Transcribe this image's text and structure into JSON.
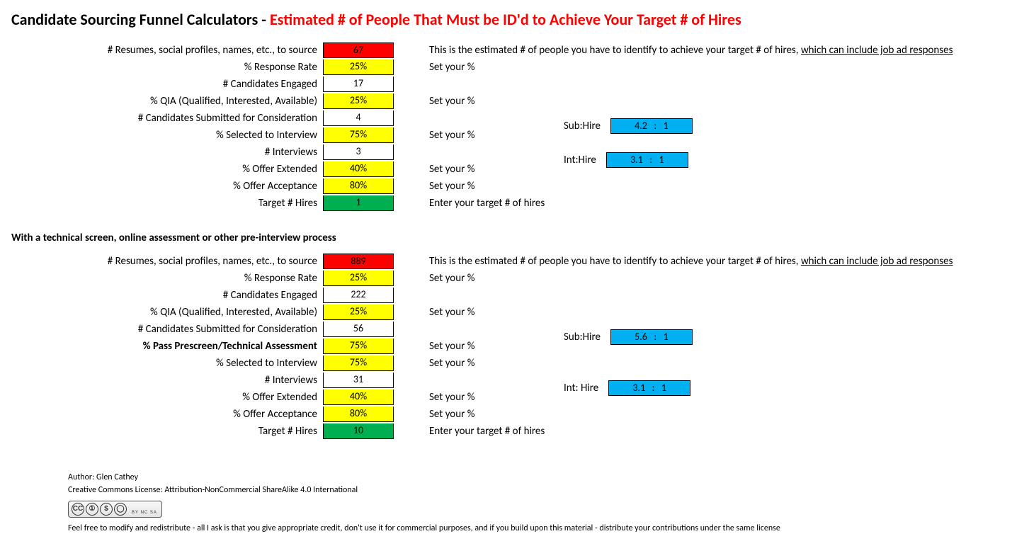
{
  "title": {
    "black": "Candidate Sourcing Funnel Calculators - ",
    "red": "Estimated # of People That Must be ID'd to Achieve Your Target # of Hires"
  },
  "colors": {
    "red": "#ff0000",
    "yellow": "#ffff00",
    "white": "#ffffff",
    "green": "#00b050",
    "blue": "#00b0f0",
    "border": "#000000",
    "text": "#000000"
  },
  "calc1": {
    "rows": [
      {
        "label": "# Resumes, social profiles, names, etc., to source",
        "value": "67",
        "style": "red",
        "desc_prefix": "This is the estimated # of people you have to identify to achieve your target # of hires, ",
        "desc_underlined": "which can include job ad responses"
      },
      {
        "label": "% Response Rate",
        "value": "25%",
        "style": "yellow",
        "desc": "Set your %"
      },
      {
        "label": "# Candidates Engaged",
        "value": "17",
        "style": "white",
        "desc": ""
      },
      {
        "label": "% QIA (Qualified, Interested, Available)",
        "value": "25%",
        "style": "yellow",
        "desc": "Set your %"
      },
      {
        "label": "# Candidates Submitted for Consideration",
        "value": "4",
        "style": "white",
        "desc": "",
        "ratio_label": "Sub:Hire",
        "ratio_value": "4.2   :   1"
      },
      {
        "label": "% Selected to Interview",
        "value": "75%",
        "style": "yellow",
        "desc": "Set your %"
      },
      {
        "label": "# Interviews",
        "value": "3",
        "style": "white",
        "desc": "",
        "ratio_label": "Int:Hire",
        "ratio_value": "3.1   :   1"
      },
      {
        "label": "% Offer Extended",
        "value": "40%",
        "style": "yellow",
        "desc": "Set your %"
      },
      {
        "label": "% Offer Acceptance",
        "value": "80%",
        "style": "yellow",
        "desc": "Set your %"
      },
      {
        "label": "Target # Hires",
        "value": "1",
        "style": "green",
        "desc": "Enter your target # of hires"
      }
    ]
  },
  "calc2": {
    "heading": "With a technical screen, online assessment or other pre-interview process",
    "rows": [
      {
        "label": "# Resumes, social profiles, names, etc., to source",
        "value": "889",
        "style": "red",
        "desc_prefix": "This is the estimated # of people you have to identify to achieve your target # of hires, ",
        "desc_underlined": "which can include job ad responses"
      },
      {
        "label": "% Response Rate",
        "value": "25%",
        "style": "yellow",
        "desc": "Set your %"
      },
      {
        "label": "# Candidates Engaged",
        "value": "222",
        "style": "white",
        "desc": ""
      },
      {
        "label": "% QIA (Qualified, Interested, Available)",
        "value": "25%",
        "style": "yellow",
        "desc": "Set your %"
      },
      {
        "label": "# Candidates Submitted for Consideration",
        "value": "56",
        "style": "white",
        "desc": "",
        "ratio_label": "Sub:Hire",
        "ratio_value": "5.6   :   1"
      },
      {
        "label": "% Pass Prescreen/Technical Assessment",
        "bold": true,
        "value": "75%",
        "style": "yellow",
        "desc": "Set your %"
      },
      {
        "label": "% Selected to Interview",
        "value": "75%",
        "style": "yellow",
        "desc": "Set your %"
      },
      {
        "label": "# Interviews",
        "value": "31",
        "style": "white",
        "desc": "",
        "ratio_label": "Int: Hire",
        "ratio_value": "3.1   :   1"
      },
      {
        "label": "% Offer Extended",
        "value": "40%",
        "style": "yellow",
        "desc": "Set your %"
      },
      {
        "label": "% Offer Acceptance",
        "value": "80%",
        "style": "yellow",
        "desc": "Set your %"
      },
      {
        "label": "Target # Hires",
        "value": "10",
        "style": "green",
        "desc": "Enter your target # of hires"
      }
    ]
  },
  "footer": {
    "author": "Author: Glen Cathey",
    "license": "Creative Commons License: Attribution-NonCommercial ShareAlike 4.0 International",
    "note": "Feel free to modify and redistribute - all I ask is that you give appropriate credit, don't use it for commercial purposes, and if you build upon this material - distribute your contributions under the same license",
    "cc_text": "BY NC SA"
  }
}
